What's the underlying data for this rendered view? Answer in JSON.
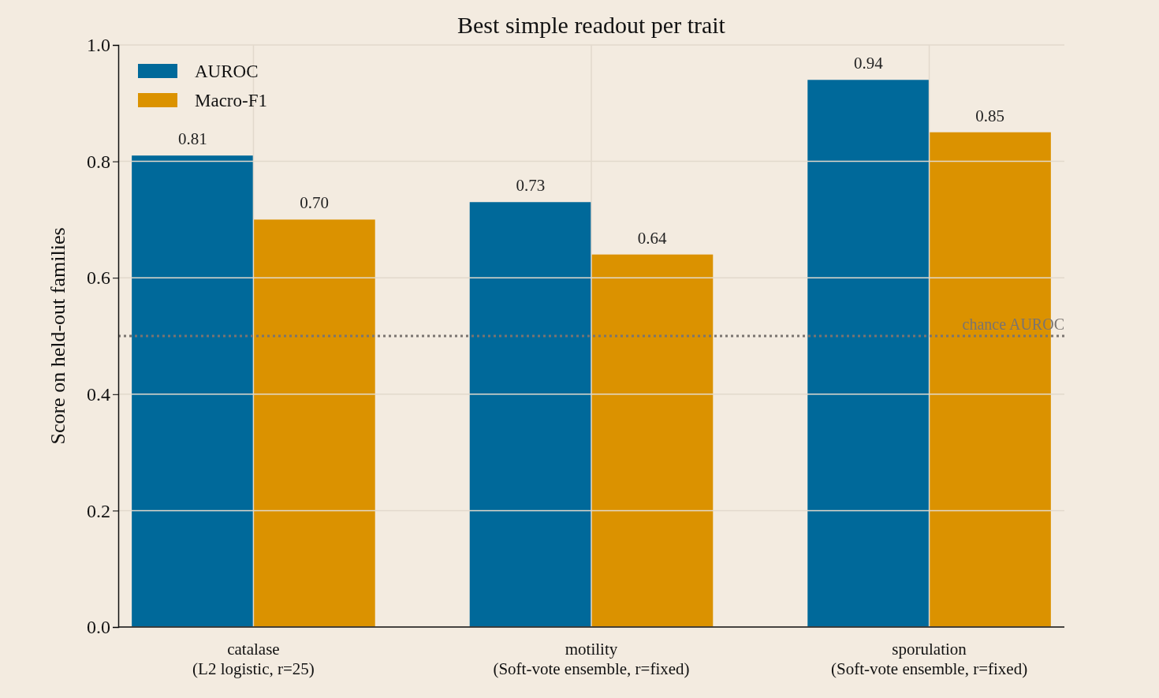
{
  "chart_data": {
    "type": "bar",
    "title": "Best simple readout per trait",
    "ylabel": "Score on held-out families",
    "categories": [
      "catalase\n(L2 logistic, r=25)",
      "motility\n(Soft-vote ensemble, r=fixed)",
      "sporulation\n(Soft-vote ensemble, r=fixed)"
    ],
    "series": [
      {
        "name": "AUROC",
        "color": "#00699a",
        "values": [
          0.81,
          0.73,
          0.94
        ],
        "value_labels": [
          "0.81",
          "0.73",
          "0.94"
        ]
      },
      {
        "name": "Macro-F1",
        "color": "#db9200",
        "values": [
          0.7,
          0.64,
          0.85
        ],
        "value_labels": [
          "0.70",
          "0.64",
          "0.85"
        ]
      }
    ],
    "ylim": [
      0,
      1
    ],
    "yticks": [
      {
        "value": 0,
        "label": "0.0"
      },
      {
        "value": 0.2,
        "label": "0.2"
      },
      {
        "value": 0.4,
        "label": "0.4"
      },
      {
        "value": 0.6,
        "label": "0.6"
      },
      {
        "value": 0.8,
        "label": "0.8"
      },
      {
        "value": 1,
        "label": "1.0"
      }
    ],
    "grid": true,
    "legend": "top left",
    "ref_lines": [
      {
        "axis": "y",
        "value": 0.5,
        "label": "chance AUROC",
        "color": "#7a7470",
        "line_style": "dotted"
      }
    ]
  }
}
